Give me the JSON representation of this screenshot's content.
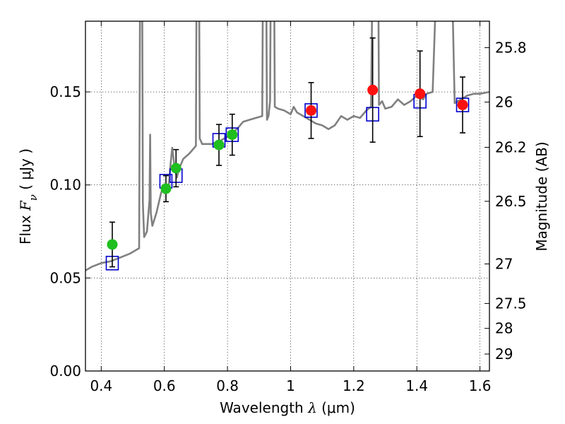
{
  "chart_data": {
    "type": "scatter",
    "title": "",
    "xlabel": {
      "prefix": "Wavelength",
      "symbol": "λ",
      "unit": "(μm)"
    },
    "ylabel": {
      "prefix": "Flux",
      "symbol": "F",
      "subscript": "ν",
      "unit": "( μJy )"
    },
    "y2label": "Magnitude (AB)",
    "xlim": [
      0.35,
      1.63
    ],
    "ylim": [
      0.0,
      0.188
    ],
    "x_ticks": [
      0.4,
      0.6,
      0.8,
      1.0,
      1.2,
      1.4,
      1.6
    ],
    "x_tick_labels": [
      "0.4",
      "0.6",
      "0.8",
      "1",
      "1.2",
      "1.4",
      "1.6"
    ],
    "y_ticks": [
      0.0,
      0.05,
      0.1,
      0.15
    ],
    "y_tick_labels": [
      "0.00",
      "0.05",
      "0.10",
      "0.15"
    ],
    "y2_ticks": [
      {
        "mag": 25.8,
        "label": "25.8"
      },
      {
        "mag": 26,
        "label": "26"
      },
      {
        "mag": 26.2,
        "label": "26.2"
      },
      {
        "mag": 26.5,
        "label": "26.5"
      },
      {
        "mag": 27,
        "label": "27"
      },
      {
        "mag": 27.5,
        "label": "27.5"
      },
      {
        "mag": 28,
        "label": "28"
      },
      {
        "mag": 29,
        "label": "29"
      }
    ],
    "grid": true,
    "colors": {
      "spectrum": "#808080",
      "optical_points": "#1fbf1f",
      "nir_points": "#ff1010",
      "model_squares": "#0000cc",
      "errorbars": "#000000"
    },
    "series": [
      {
        "style": "line",
        "color": "#808080",
        "x": [
          0.35,
          0.37,
          0.4,
          0.43,
          0.46,
          0.49,
          0.52,
          0.525,
          0.528,
          0.532,
          0.536,
          0.545,
          0.553,
          0.555,
          0.557,
          0.562,
          0.575,
          0.59,
          0.6,
          0.612,
          0.62,
          0.625,
          0.632,
          0.64,
          0.645,
          0.66,
          0.68,
          0.7,
          0.704,
          0.708,
          0.712,
          0.72,
          0.75,
          0.78,
          0.8,
          0.83,
          0.85,
          0.87,
          0.89,
          0.91,
          0.915,
          0.92,
          0.925,
          0.93,
          0.935,
          0.94,
          0.945,
          0.95,
          0.96,
          0.98,
          1.0,
          1.01,
          1.02,
          1.04,
          1.06,
          1.08,
          1.1,
          1.12,
          1.14,
          1.16,
          1.18,
          1.2,
          1.22,
          1.24,
          1.255,
          1.265,
          1.275,
          1.28,
          1.29,
          1.3,
          1.32,
          1.34,
          1.36,
          1.38,
          1.4,
          1.42,
          1.43,
          1.45,
          1.48,
          1.5,
          1.52,
          1.54,
          1.56,
          1.58,
          1.6,
          1.63
        ],
        "y": [
          0.054,
          0.056,
          0.058,
          0.059,
          0.061,
          0.063,
          0.066,
          0.3,
          0.3,
          0.09,
          0.072,
          0.075,
          0.092,
          0.127,
          0.085,
          0.078,
          0.085,
          0.096,
          0.1,
          0.096,
          0.112,
          0.12,
          0.11,
          0.104,
          0.108,
          0.114,
          0.117,
          0.121,
          0.3,
          0.3,
          0.125,
          0.122,
          0.122,
          0.124,
          0.126,
          0.13,
          0.134,
          0.135,
          0.136,
          0.137,
          0.3,
          0.3,
          0.135,
          0.137,
          0.145,
          0.3,
          0.3,
          0.142,
          0.141,
          0.14,
          0.138,
          0.142,
          0.139,
          0.137,
          0.135,
          0.133,
          0.132,
          0.13,
          0.132,
          0.137,
          0.135,
          0.137,
          0.136,
          0.14,
          0.142,
          0.3,
          0.3,
          0.143,
          0.145,
          0.141,
          0.142,
          0.146,
          0.143,
          0.145,
          0.148,
          0.146,
          0.149,
          0.15,
          0.3,
          0.3,
          0.144,
          0.146,
          0.148,
          0.149,
          0.149,
          0.15
        ]
      },
      {
        "style": "points",
        "marker": "circle",
        "color": "#1fbf1f",
        "x": [
          0.435,
          0.605,
          0.637,
          0.773,
          0.815
        ],
        "y": [
          0.068,
          0.098,
          0.109,
          0.1215,
          0.127
        ],
        "yerr": [
          0.012,
          0.007,
          0.01,
          0.011,
          0.011
        ]
      },
      {
        "style": "points",
        "marker": "circle",
        "color": "#ff1010",
        "x": [
          1.065,
          1.26,
          1.41,
          1.545
        ],
        "y": [
          0.14,
          0.151,
          0.149,
          0.143
        ],
        "yerr": [
          0.015,
          0.028,
          0.023,
          0.015
        ]
      },
      {
        "style": "points",
        "marker": "square",
        "color": "#0000cc",
        "x": [
          0.435,
          0.605,
          0.637,
          0.773,
          0.815,
          1.065,
          1.26,
          1.41,
          1.545
        ],
        "y": [
          0.058,
          0.102,
          0.105,
          0.124,
          0.127,
          0.14,
          0.138,
          0.145,
          0.143
        ]
      }
    ]
  }
}
